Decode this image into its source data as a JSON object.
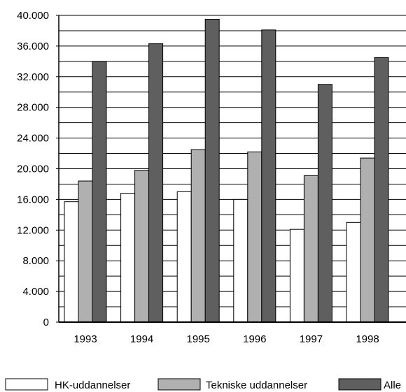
{
  "chart_data": {
    "type": "bar",
    "categories": [
      "1993",
      "1994",
      "1995",
      "1996",
      "1997",
      "1998"
    ],
    "series": [
      {
        "name": "HK-uddannelser",
        "values": [
          15700,
          16800,
          17000,
          16000,
          12100,
          13000
        ],
        "color": "#ffffff"
      },
      {
        "name": "Tekniske uddannelser",
        "values": [
          18400,
          19800,
          22500,
          22200,
          19100,
          21400
        ],
        "color": "#b0b0b0"
      },
      {
        "name": "Alle",
        "values": [
          34000,
          36300,
          39500,
          38100,
          31000,
          34500
        ],
        "color": "#5f5f5f"
      }
    ],
    "y_ticks": [
      "0",
      "4.000",
      "8.000",
      "12.000",
      "16.000",
      "20.000",
      "24.000",
      "28.000",
      "32.000",
      "36.000",
      "40.000"
    ],
    "ylim": [
      0,
      40000
    ],
    "grid": true,
    "legend_position": "bottom"
  }
}
